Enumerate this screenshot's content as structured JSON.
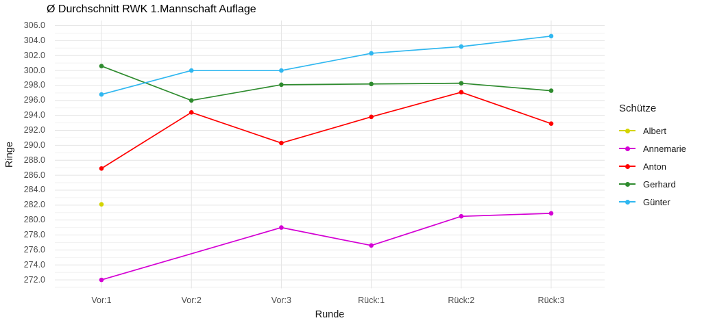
{
  "chart_data": {
    "type": "line",
    "title": "Ø Durchschnitt RWK 1.Mannschaft Auflage",
    "xlabel": "Runde",
    "ylabel": "Ringe",
    "legend_title": "Schütze",
    "legend_position": "right",
    "grid": "major horizontal every 2.0, minor every 1.0, vertical at categories",
    "ylim": [
      270.9,
      306.7
    ],
    "y_tick_step": 2.0,
    "y_ticks": [
      306,
      304,
      302,
      300,
      298,
      296,
      294,
      292,
      290,
      288,
      286,
      284,
      282,
      280,
      278,
      276,
      274,
      272
    ],
    "y_tick_labels": [
      "306.0",
      "304.0",
      "302.0",
      "300.0",
      "298.0",
      "296.0",
      "294.0",
      "292.0",
      "290.0",
      "288.0",
      "286.0",
      "284.0",
      "282.0",
      "280.0",
      "278.0",
      "276.0",
      "274.0",
      "272.0"
    ],
    "categories": [
      "Vor:1",
      "Vor:2",
      "Vor:3",
      "Rück:1",
      "Rück:2",
      "Rück:3"
    ],
    "series": [
      {
        "name": "Albert",
        "color": "#d4d400",
        "values": [
          282.1,
          null,
          null,
          null,
          null,
          null
        ]
      },
      {
        "name": "Annemarie",
        "color": "#d400d4",
        "values": [
          272.0,
          null,
          279.0,
          276.6,
          280.5,
          280.9
        ]
      },
      {
        "name": "Anton",
        "color": "#ff0000",
        "values": [
          286.9,
          294.4,
          290.3,
          293.8,
          297.1,
          292.9
        ]
      },
      {
        "name": "Gerhard",
        "color": "#2e8b2e",
        "values": [
          300.6,
          296.0,
          298.1,
          298.2,
          298.3,
          297.3
        ]
      },
      {
        "name": "Günter",
        "color": "#2fb7f0",
        "values": [
          296.8,
          300.0,
          300.0,
          302.3,
          303.2,
          304.6
        ]
      }
    ],
    "colors": {
      "grid_major": "#e4e4e4",
      "grid_minor": "#f2f2f2",
      "tick_text": "#4d4d4d",
      "title_text": "#000000"
    }
  }
}
